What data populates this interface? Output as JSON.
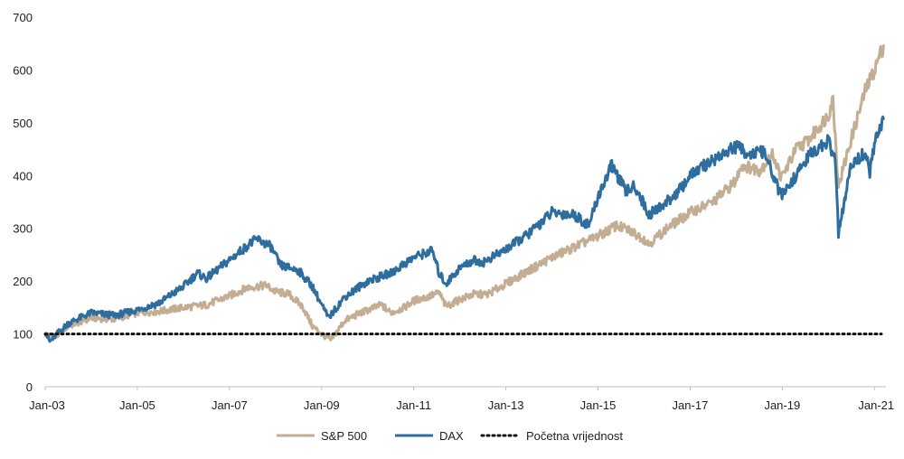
{
  "chart_data": {
    "type": "line",
    "title": "",
    "xlabel": "",
    "ylabel": "",
    "ylim": [
      0,
      700
    ],
    "y_ticks": [
      "0",
      "100",
      "200",
      "300",
      "400",
      "500",
      "600",
      "700"
    ],
    "x_ticks": [
      "Jan-03",
      "Jan-05",
      "Jan-07",
      "Jan-09",
      "Jan-11",
      "Jan-13",
      "Jan-15",
      "Jan-17",
      "Jan-19",
      "Jan-21"
    ],
    "grid": false,
    "legend_position": "bottom",
    "series": [
      {
        "name": "S&P 500",
        "color": "#c4ae93",
        "x": [
          2003.0,
          2003.2,
          2003.5,
          2004.0,
          2004.5,
          2005.0,
          2005.5,
          2006.0,
          2006.5,
          2007.0,
          2007.4,
          2007.8,
          2008.0,
          2008.3,
          2008.6,
          2008.8,
          2009.0,
          2009.2,
          2009.5,
          2009.8,
          2010.0,
          2010.3,
          2010.5,
          2010.8,
          2011.0,
          2011.3,
          2011.55,
          2011.7,
          2012.0,
          2012.3,
          2012.6,
          2013.0,
          2013.5,
          2014.0,
          2014.5,
          2015.0,
          2015.4,
          2015.7,
          2016.0,
          2016.1,
          2016.5,
          2017.0,
          2017.5,
          2018.0,
          2018.1,
          2018.5,
          2018.8,
          2018.98,
          2019.3,
          2019.6,
          2020.0,
          2020.1,
          2020.22,
          2020.5,
          2020.8,
          2021.0,
          2021.2
        ],
        "values": [
          100,
          92,
          115,
          130,
          128,
          140,
          143,
          150,
          155,
          172,
          188,
          192,
          180,
          175,
          150,
          115,
          100,
          88,
          125,
          138,
          145,
          155,
          140,
          150,
          163,
          170,
          178,
          152,
          165,
          175,
          175,
          195,
          220,
          245,
          265,
          285,
          305,
          295,
          280,
          270,
          300,
          330,
          350,
          390,
          420,
          410,
          440,
          395,
          450,
          470,
          515,
          545,
          380,
          470,
          560,
          600,
          648
        ]
      },
      {
        "name": "DAX",
        "color": "#2e6e9e",
        "x": [
          2003.0,
          2003.1,
          2003.2,
          2003.5,
          2004.0,
          2004.5,
          2005.0,
          2005.5,
          2006.0,
          2006.3,
          2006.5,
          2007.0,
          2007.4,
          2007.6,
          2007.9,
          2008.1,
          2008.5,
          2008.8,
          2009.0,
          2009.15,
          2009.5,
          2010.0,
          2010.5,
          2011.0,
          2011.4,
          2011.55,
          2011.7,
          2012.0,
          2012.3,
          2012.5,
          2013.0,
          2013.5,
          2014.0,
          2014.5,
          2014.8,
          2015.0,
          2015.3,
          2015.6,
          2015.8,
          2016.0,
          2016.1,
          2016.5,
          2016.8,
          2017.0,
          2017.5,
          2018.0,
          2018.3,
          2018.6,
          2018.98,
          2019.3,
          2019.6,
          2020.0,
          2020.15,
          2020.22,
          2020.5,
          2020.8,
          2020.9,
          2021.0,
          2021.2
        ],
        "values": [
          105,
          85,
          95,
          120,
          140,
          135,
          145,
          160,
          190,
          215,
          205,
          240,
          268,
          280,
          265,
          230,
          220,
          190,
          155,
          130,
          170,
          200,
          215,
          245,
          258,
          215,
          195,
          225,
          240,
          235,
          260,
          290,
          330,
          325,
          305,
          360,
          420,
          370,
          380,
          345,
          325,
          350,
          375,
          400,
          430,
          455,
          440,
          445,
          360,
          400,
          440,
          465,
          430,
          290,
          420,
          445,
          405,
          460,
          505
        ]
      },
      {
        "name": "Početna vrijednost",
        "color": "#111111",
        "x": [
          2003.0,
          2021.2
        ],
        "values": [
          100,
          100
        ]
      }
    ]
  }
}
